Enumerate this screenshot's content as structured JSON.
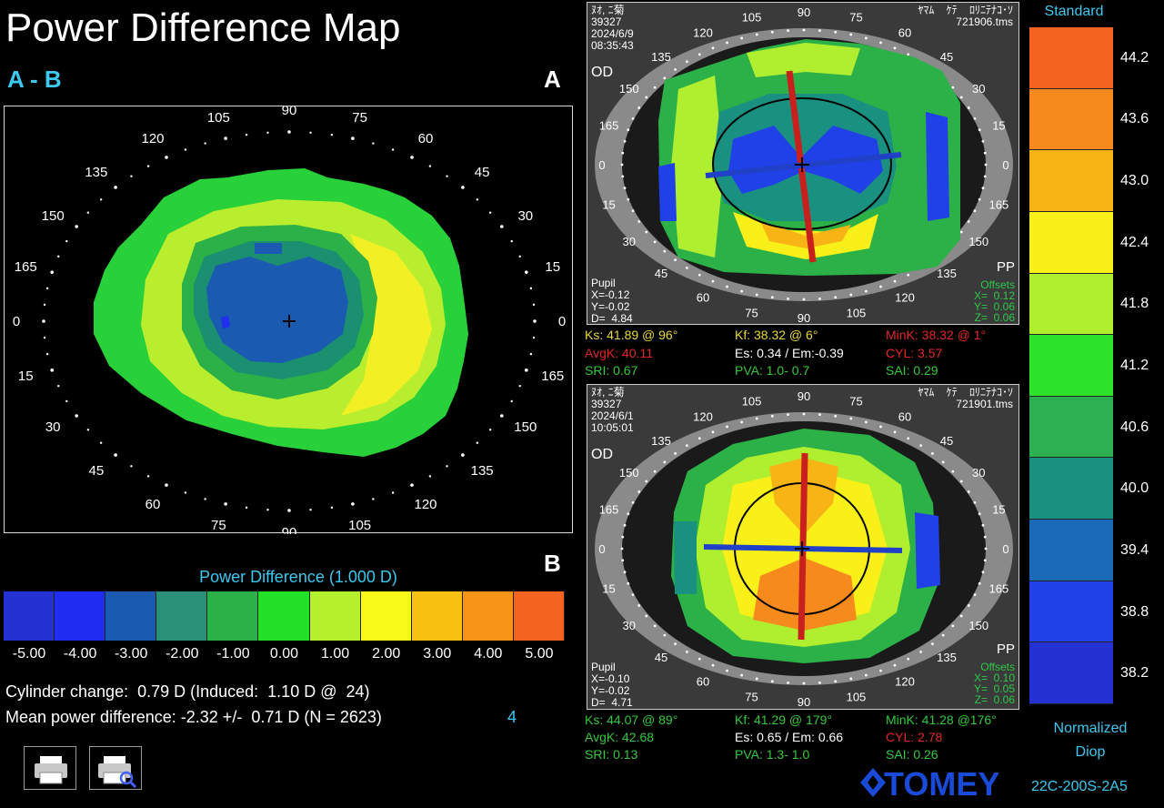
{
  "title": "Power Difference Map",
  "subtitle": "A - B",
  "panel_a_letter": "A",
  "panel_b_letter": "B",
  "diff_map": {
    "axis_labels": [
      "90",
      "105",
      "75",
      "120",
      "60",
      "135",
      "45",
      "150",
      "30",
      "165",
      "15",
      "0",
      "0",
      "15",
      "165",
      "30",
      "150",
      "45",
      "135",
      "60",
      "120",
      "75",
      "105",
      "90"
    ]
  },
  "power_difference": {
    "title": "Power Difference (1.000 D)",
    "ticks": [
      "-5.00",
      "-4.00",
      "-3.00",
      "-2.00",
      "-1.00",
      "0.00",
      "1.00",
      "2.00",
      "3.00",
      "4.00",
      "5.00"
    ],
    "colors": [
      "#2432d4",
      "#1f2ef0",
      "#1a5ab0",
      "#2a9078",
      "#2cb048",
      "#22e028",
      "#b4f02c",
      "#fafa18",
      "#f8c010",
      "#f89418",
      "#f46420"
    ]
  },
  "stats": {
    "cylinder_change": "Cylinder change:  0.79 D (Induced:  1.10 D @  24)",
    "mean_power": "Mean power difference: -2.32 +/-  0.71 D (N = 2623)",
    "mean_power_index": "4"
  },
  "eye_a": {
    "header_left": "ﾇｵ, ﾆ菊\n39327\n2024/6/9\n08:35:43",
    "header_right": "ﾔﾏﾑ    ｹﾃ    ﾛﾘﾆﾃﾅｺ･ｿ\n721906.tms",
    "od": "OD",
    "pp": "PP",
    "pupil": "Pupil\nX=-0.12\nY=-0.02\nD=  4.84",
    "offsets": "Offsets\nX=  0.12\nY=  0.06\nZ=  0.06",
    "ks": "Ks: 41.89 @ 96°",
    "kf": "Kf: 38.32 @  6°",
    "mink": "MinK: 38.32 @  1°",
    "avgk": "AvgK: 40.11",
    "es": "Es: 0.34 / Em:-0.39",
    "cyl": "CYL:  3.57",
    "sri": "SRI: 0.67",
    "pva": "PVA:  1.0-  0.7",
    "sai": "SAI: 0.29"
  },
  "eye_b": {
    "header_left": "ﾇｵ, ﾆ菊\n39327\n2024/6/1\n10:05:01",
    "header_right": "ﾔﾏﾑ    ｹﾃ    ﾛﾘﾆﾃﾅｺ･ｿ\n721901.tms",
    "od": "OD",
    "pp": "PP",
    "pupil": "Pupil\nX=-0.10\nY=-0.02\nD=  4.71",
    "offsets": "Offsets\nX=  0.10\nY=  0.05\nZ=  0.06",
    "ks": "Ks: 44.07 @ 89°",
    "kf": "Kf: 41.29 @ 179°",
    "mink": "MinK: 41.28 @176°",
    "avgk": "AvgK: 42.68",
    "es": "Es: 0.65 / Em: 0.66",
    "cyl": "CYL:  2.78",
    "sri": "SRI: 0.13",
    "pva": "PVA:  1.3-  1.0",
    "sai": "SAI: 0.26"
  },
  "eye_axis_labels": [
    "90",
    "105",
    "75",
    "120",
    "60",
    "135",
    "45",
    "150",
    "30",
    "165",
    "15",
    "0",
    "0",
    "15",
    "165",
    "30",
    "150",
    "45",
    "135",
    "60",
    "120",
    "75",
    "105",
    "90"
  ],
  "standard_scale": {
    "label": "Standard",
    "ticks": [
      "44.2",
      "43.6",
      "43.0",
      "42.4",
      "41.8",
      "41.2",
      "40.6",
      "40.0",
      "39.4",
      "38.8",
      "38.2"
    ],
    "colors": [
      "#f46420",
      "#f68a1c",
      "#f8b414",
      "#f8f018",
      "#b0ee30",
      "#2ee42a",
      "#2cb050",
      "#1a9080",
      "#1a6ab8",
      "#2040e8",
      "#2432d4"
    ],
    "normalized": "Normalized",
    "diop": "Diop"
  },
  "brand": "TOMEY",
  "code": "22C-200S-2A5"
}
